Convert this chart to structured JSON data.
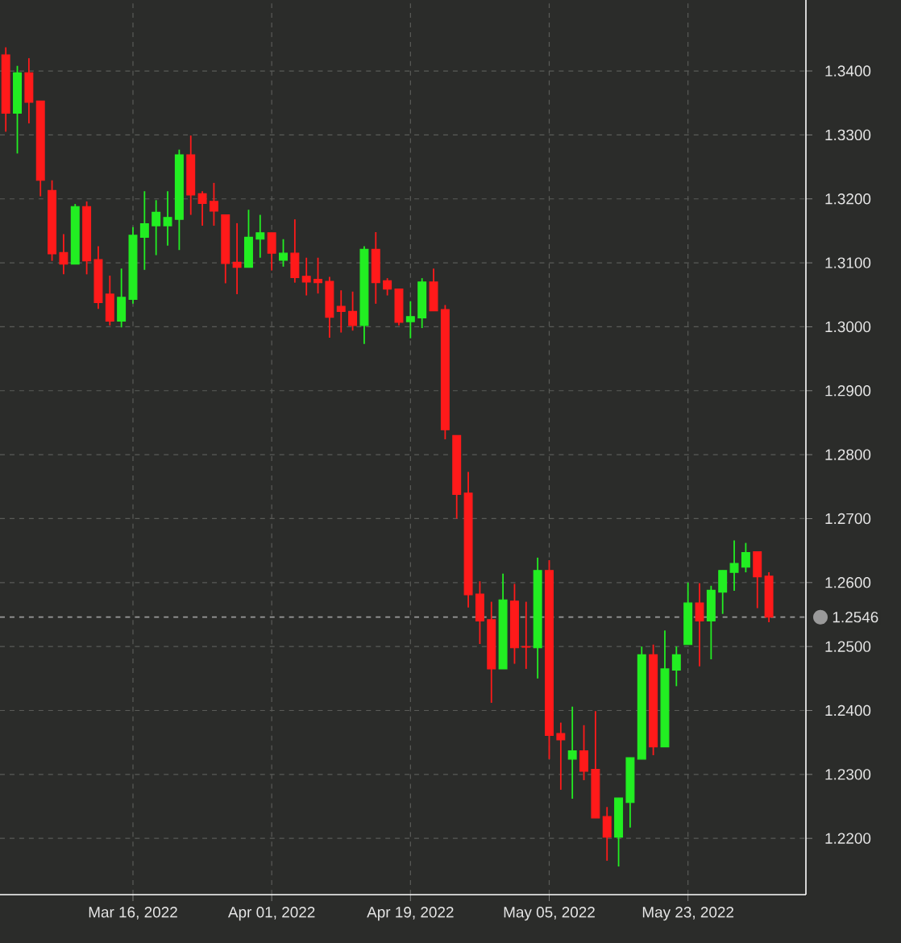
{
  "chart_data": {
    "type": "candlestick",
    "categories": [
      null,
      null,
      null,
      null,
      null,
      null,
      null,
      null,
      null,
      null,
      null,
      "Mar 16, 2022",
      null,
      null,
      null,
      null,
      null,
      null,
      null,
      null,
      null,
      null,
      null,
      "Apr 01, 2022",
      null,
      null,
      null,
      null,
      null,
      null,
      null,
      null,
      null,
      null,
      null,
      "Apr 19, 2022",
      null,
      null,
      null,
      null,
      null,
      null,
      null,
      null,
      null,
      null,
      null,
      "May 05, 2022",
      null,
      null,
      null,
      null,
      null,
      null,
      null,
      null,
      null,
      null,
      null,
      "May 23, 2022",
      null,
      null,
      null,
      null,
      null,
      null,
      null
    ],
    "ohlc": [
      [
        1.3425,
        1.3437,
        1.3305,
        1.3334
      ],
      [
        1.3334,
        1.3408,
        1.3271,
        1.3397
      ],
      [
        1.3397,
        1.342,
        1.3318,
        1.3351
      ],
      [
        1.3353,
        1.3353,
        1.3204,
        1.3229
      ],
      [
        1.3213,
        1.3229,
        1.3103,
        1.3114
      ],
      [
        1.3116,
        1.3145,
        1.3082,
        1.3098
      ],
      [
        1.3098,
        1.3192,
        1.3098,
        1.3188
      ],
      [
        1.3188,
        1.3196,
        1.3082,
        1.3103
      ],
      [
        1.3105,
        1.3126,
        1.3028,
        1.3038
      ],
      [
        1.3051,
        1.308,
        1.3002,
        1.3009
      ],
      [
        1.3009,
        1.3091,
        1.2999,
        1.3046
      ],
      [
        1.3043,
        1.3156,
        1.3036,
        1.3143
      ],
      [
        1.314,
        1.3212,
        1.3089,
        1.3161
      ],
      [
        1.3158,
        1.3198,
        1.3112,
        1.3179
      ],
      [
        1.3158,
        1.3212,
        1.3127,
        1.3171
      ],
      [
        1.3168,
        1.3277,
        1.312,
        1.3269
      ],
      [
        1.3269,
        1.3299,
        1.3175,
        1.3206
      ],
      [
        1.3208,
        1.3212,
        1.3158,
        1.3193
      ],
      [
        1.3196,
        1.3225,
        1.3158,
        1.3181
      ],
      [
        1.3175,
        1.3175,
        1.3068,
        1.3099
      ],
      [
        1.3101,
        1.3162,
        1.3051,
        1.3093
      ],
      [
        1.3093,
        1.3183,
        1.3093,
        1.314
      ],
      [
        1.3137,
        1.3175,
        1.3108,
        1.3147
      ],
      [
        1.3147,
        1.3147,
        1.3088,
        1.3115
      ],
      [
        1.3104,
        1.3137,
        1.3094,
        1.3115
      ],
      [
        1.3115,
        1.3168,
        1.3069,
        1.3077
      ],
      [
        1.3079,
        1.3108,
        1.3049,
        1.307
      ],
      [
        1.3074,
        1.3108,
        1.3052,
        1.3069
      ],
      [
        1.3071,
        1.3078,
        1.2983,
        1.3015
      ],
      [
        1.3032,
        1.3057,
        1.2991,
        1.3024
      ],
      [
        1.3024,
        1.3055,
        1.2994,
        1.3002
      ],
      [
        1.3002,
        1.3126,
        1.2973,
        1.3121
      ],
      [
        1.3121,
        1.3148,
        1.3036,
        1.3069
      ],
      [
        1.3072,
        1.3076,
        1.3049,
        1.3059
      ],
      [
        1.3059,
        1.3059,
        1.3002,
        1.3007
      ],
      [
        1.3008,
        1.304,
        1.2982,
        1.3016
      ],
      [
        1.3014,
        1.3076,
        1.2998,
        1.307
      ],
      [
        1.307,
        1.3091,
        1.3025,
        1.3025
      ],
      [
        1.3027,
        1.3034,
        1.2824,
        1.2839
      ],
      [
        1.283,
        1.283,
        1.27,
        1.2738
      ],
      [
        1.274,
        1.2773,
        1.2561,
        1.2581
      ],
      [
        1.2582,
        1.2602,
        1.2504,
        1.254
      ],
      [
        1.2542,
        1.257,
        1.2412,
        1.2465
      ],
      [
        1.2465,
        1.2614,
        1.2465,
        1.2573
      ],
      [
        1.2571,
        1.2598,
        1.2473,
        1.2498
      ],
      [
        1.25,
        1.257,
        1.2465,
        1.2499
      ],
      [
        1.2498,
        1.2639,
        1.245,
        1.2619
      ],
      [
        1.2619,
        1.2635,
        1.2324,
        1.2361
      ],
      [
        1.2364,
        1.2381,
        1.2276,
        1.2354
      ],
      [
        1.2324,
        1.2406,
        1.2262,
        1.2337
      ],
      [
        1.2337,
        1.2377,
        1.2291,
        1.2305
      ],
      [
        1.2308,
        1.2399,
        1.2232,
        1.2232
      ],
      [
        1.2234,
        1.2249,
        1.2165,
        1.2202
      ],
      [
        1.2202,
        1.2263,
        1.2156,
        1.2263
      ],
      [
        1.2256,
        1.2326,
        1.2217,
        1.2326
      ],
      [
        1.2324,
        1.25,
        1.2324,
        1.2487
      ],
      [
        1.2487,
        1.2503,
        1.233,
        1.2343
      ],
      [
        1.2343,
        1.2525,
        1.2343,
        1.2465
      ],
      [
        1.2463,
        1.25,
        1.2438,
        1.2487
      ],
      [
        1.2503,
        1.26,
        1.2503,
        1.2568
      ],
      [
        1.2568,
        1.2599,
        1.2469,
        1.254
      ],
      [
        1.254,
        1.2595,
        1.248,
        1.2588
      ],
      [
        1.2585,
        1.2619,
        1.2551,
        1.2619
      ],
      [
        1.2616,
        1.2666,
        1.2587,
        1.263
      ],
      [
        1.2624,
        1.2662,
        1.2616,
        1.2647
      ],
      [
        1.2648,
        1.2648,
        1.256,
        1.2609
      ],
      [
        1.261,
        1.2616,
        1.2538,
        1.2546
      ]
    ],
    "colors": [
      "#ff1a1a",
      "#22ee22",
      "#ff1a1a",
      "#ff1a1a",
      "#ff1a1a",
      "#ff1a1a",
      "#22ee22",
      "#ff1a1a",
      "#ff1a1a",
      "#ff1a1a",
      "#22ee22",
      "#22ee22",
      "#22ee22",
      "#22ee22",
      "#22ee22",
      "#22ee22",
      "#ff1a1a",
      "#ff1a1a",
      "#ff1a1a",
      "#ff1a1a",
      "#ff1a1a",
      "#22ee22",
      "#22ee22",
      "#ff1a1a",
      "#22ee22",
      "#ff1a1a",
      "#ff1a1a",
      "#ff1a1a",
      "#ff1a1a",
      "#ff1a1a",
      "#ff1a1a",
      "#22ee22",
      "#ff1a1a",
      "#ff1a1a",
      "#ff1a1a",
      "#22ee22",
      "#22ee22",
      "#ff1a1a",
      "#ff1a1a",
      "#ff1a1a",
      "#ff1a1a",
      "#ff1a1a",
      "#ff1a1a",
      "#22ee22",
      "#ff1a1a",
      "#ff1a1a",
      "#22ee22",
      "#ff1a1a",
      "#ff1a1a",
      "#22ee22",
      "#ff1a1a",
      "#ff1a1a",
      "#ff1a1a",
      "#22ee22",
      "#22ee22",
      "#22ee22",
      "#ff1a1a",
      "#22ee22",
      "#22ee22",
      "#22ee22",
      "#ff1a1a",
      "#22ee22",
      "#22ee22",
      "#22ee22",
      "#22ee22",
      "#ff1a1a",
      "#ff1a1a"
    ],
    "ylim": [
      1.2112,
      1.3511
    ],
    "yticks": [
      {
        "value": 1.22,
        "label": "1.2200"
      },
      {
        "value": 1.23,
        "label": "1.2300"
      },
      {
        "value": 1.24,
        "label": "1.2400"
      },
      {
        "value": 1.25,
        "label": "1.2500"
      },
      {
        "value": 1.26,
        "label": "1.2600"
      },
      {
        "value": 1.27,
        "label": "1.2700"
      },
      {
        "value": 1.28,
        "label": "1.2800"
      },
      {
        "value": 1.29,
        "label": "1.2900"
      },
      {
        "value": 1.3,
        "label": "1.3000"
      },
      {
        "value": 1.31,
        "label": "1.3100"
      },
      {
        "value": 1.32,
        "label": "1.3200"
      },
      {
        "value": 1.33,
        "label": "1.3300"
      },
      {
        "value": 1.34,
        "label": "1.3400"
      }
    ],
    "ref_lines": [
      {
        "axis": "y",
        "value": 1.2546,
        "label": "1.2546",
        "color": "#9a9a9a",
        "line_style": "dashed"
      }
    ],
    "grid": true
  }
}
